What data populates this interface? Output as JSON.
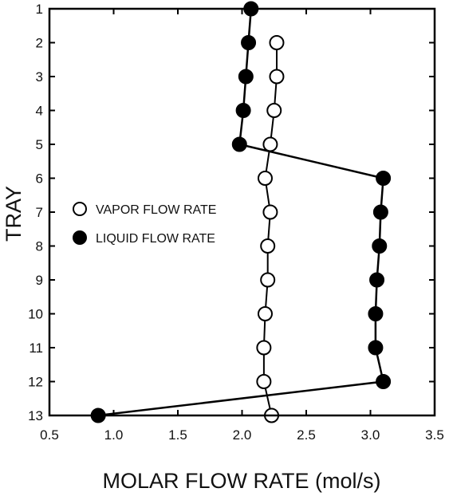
{
  "chart_data": {
    "type": "line",
    "title": "",
    "xlabel": "MOLAR FLOW RATE (mol/s)",
    "ylabel": "TRAY",
    "xlim": [
      0.5,
      3.5
    ],
    "ylim": [
      1,
      13
    ],
    "y_inverted": true,
    "xticks": [
      "0.5",
      "1.0",
      "1.5",
      "2.0",
      "2.5",
      "3.0",
      "3.5"
    ],
    "yticks": [
      "1",
      "2",
      "3",
      "4",
      "5",
      "6",
      "7",
      "8",
      "9",
      "10",
      "11",
      "12",
      "13"
    ],
    "grid": false,
    "legend_position": "left-middle",
    "series": [
      {
        "name": "VAPOR FLOW RATE",
        "marker": "open-circle",
        "color": "#000000",
        "points": [
          {
            "x": 2.27,
            "y": 2
          },
          {
            "x": 2.27,
            "y": 3
          },
          {
            "x": 2.25,
            "y": 4
          },
          {
            "x": 2.22,
            "y": 5
          },
          {
            "x": 2.18,
            "y": 6
          },
          {
            "x": 2.22,
            "y": 7
          },
          {
            "x": 2.2,
            "y": 8
          },
          {
            "x": 2.2,
            "y": 9
          },
          {
            "x": 2.18,
            "y": 10
          },
          {
            "x": 2.17,
            "y": 11
          },
          {
            "x": 2.17,
            "y": 12
          },
          {
            "x": 2.23,
            "y": 13
          }
        ]
      },
      {
        "name": "LIQUID FLOW RATE",
        "marker": "filled-circle",
        "color": "#000000",
        "points": [
          {
            "x": 2.07,
            "y": 1
          },
          {
            "x": 2.05,
            "y": 2
          },
          {
            "x": 2.03,
            "y": 3
          },
          {
            "x": 2.01,
            "y": 4
          },
          {
            "x": 1.98,
            "y": 5
          },
          {
            "x": 3.1,
            "y": 6
          },
          {
            "x": 3.08,
            "y": 7
          },
          {
            "x": 3.07,
            "y": 8
          },
          {
            "x": 3.05,
            "y": 9
          },
          {
            "x": 3.04,
            "y": 10
          },
          {
            "x": 3.04,
            "y": 11
          },
          {
            "x": 3.1,
            "y": 12
          },
          {
            "x": 0.88,
            "y": 13
          }
        ]
      }
    ]
  }
}
